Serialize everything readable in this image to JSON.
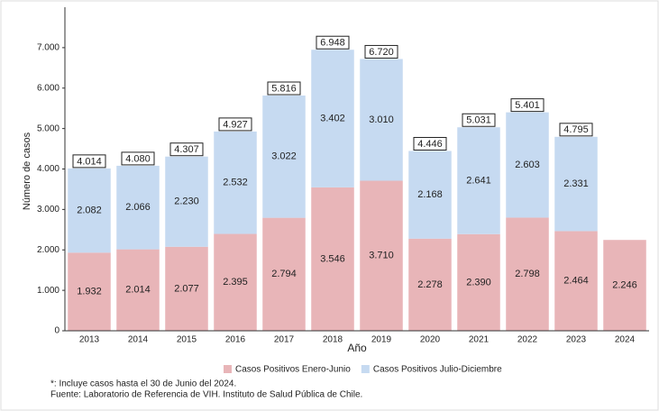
{
  "chart_data": {
    "type": "stacked_bar",
    "y_label": "Número de casos",
    "x_label": "Año",
    "categories": [
      "2013",
      "2014",
      "2015",
      "2016",
      "2017",
      "2018",
      "2019",
      "2020",
      "2021",
      "2022",
      "2023",
      "2024"
    ],
    "series": [
      {
        "name": "Casos Positivos Enero-Junio",
        "color": "#e8b5b8",
        "values": [
          1932,
          2014,
          2077,
          2395,
          2794,
          3546,
          3710,
          2278,
          2390,
          2798,
          2464,
          2246
        ],
        "value_labels": [
          "1.932",
          "2.014",
          "2.077",
          "2.395",
          "2.794",
          "3.546",
          "3.710",
          "2.278",
          "2.390",
          "2.798",
          "2.464",
          "2.246"
        ]
      },
      {
        "name": "Casos Positivos Julio-Diciembre",
        "color": "#c6daf1",
        "values": [
          2082,
          2066,
          2230,
          2532,
          3022,
          3402,
          3010,
          2168,
          2641,
          2603,
          2331,
          null
        ],
        "value_labels": [
          "2.082",
          "2.066",
          "2.230",
          "2.532",
          "3.022",
          "3.402",
          "3.010",
          "2.168",
          "2.641",
          "2.603",
          "2.331",
          null
        ]
      }
    ],
    "totals": {
      "values": [
        4014,
        4080,
        4307,
        4927,
        5816,
        6948,
        6720,
        4446,
        5031,
        5401,
        4795,
        null
      ],
      "value_labels": [
        "4.014",
        "4.080",
        "4.307",
        "4.927",
        "5.816",
        "6.948",
        "6.720",
        "4.446",
        "5.031",
        "5.401",
        "4.795",
        null
      ]
    },
    "ylim": [
      0,
      8000
    ],
    "yticks": [
      0,
      {
        "value": 1000,
        "label": "1.000"
      },
      {
        "value": 2000,
        "label": "2.000"
      },
      {
        "value": 3000,
        "label": "3.000"
      },
      {
        "value": 4000,
        "label": "4.000"
      },
      {
        "value": 5000,
        "label": "5.000"
      },
      {
        "value": 6000,
        "label": "6.000"
      },
      {
        "value": 7000,
        "label": "7.000"
      }
    ],
    "legend": "bottom",
    "notes": [
      "*: Incluye casos hasta el 30 de Junio del 2024.",
      "Fuente: Laboratorio de Referencia de VIH. Instituto de Salud Pública de Chile."
    ]
  }
}
